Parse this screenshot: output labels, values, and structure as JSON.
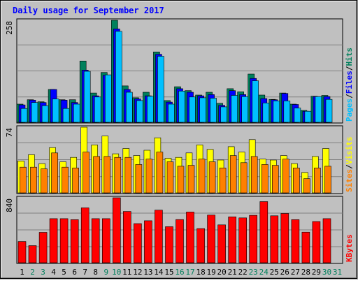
{
  "chart_data": {
    "type": "bar",
    "title": "Daily usage for September 2017",
    "categories": [
      "1",
      "2",
      "3",
      "4",
      "5",
      "6",
      "7",
      "8",
      "9",
      "10",
      "11",
      "12",
      "13",
      "14",
      "15",
      "16",
      "17",
      "18",
      "19",
      "20",
      "21",
      "22",
      "23",
      "24",
      "25",
      "26",
      "27",
      "28",
      "29",
      "30",
      "31"
    ],
    "weekend_days": [
      2,
      3,
      9,
      10,
      16,
      17,
      23,
      24,
      30,
      31
    ],
    "colors": {
      "background": "#c0c0c0",
      "hits": "#00805c",
      "files": "#0000ff",
      "pages": "#00c0ff",
      "visits": "#ffff00",
      "sites": "#ff8000",
      "kbytes": "#ff0000",
      "title": "#0000ff",
      "weekday_label": "#000000",
      "weekend_label": "#00805c"
    },
    "panels": [
      {
        "id": "hits-files-pages",
        "max_label": "258",
        "ylim": [
          0,
          258
        ],
        "legend": [
          "Pages",
          "Files",
          "Hits"
        ],
        "series": [
          {
            "name": "Hits",
            "color": "#00805c",
            "values": [
              46,
              57,
              52,
              83,
              57,
              57,
              155,
              74,
              126,
              258,
              92,
              62,
              76,
              178,
              55,
              90,
              80,
              69,
              76,
              48,
              85,
              77,
              122,
              69,
              58,
              74,
              46,
              30,
              66,
              68,
              0
            ]
          },
          {
            "name": "Files",
            "color": "#0000ff",
            "values": [
              44,
              56,
              50,
              83,
              56,
              50,
              132,
              67,
              119,
              236,
              83,
              59,
              67,
              172,
              51,
              85,
              76,
              67,
              70,
              43,
              80,
              70,
              111,
              60,
              57,
              73,
              45,
              28,
              65,
              65,
              0
            ]
          },
          {
            "name": "Pages",
            "color": "#00c0ff",
            "values": [
              35,
              50,
              42,
              59,
              35,
              46,
              129,
              64,
              120,
              230,
              76,
              55,
              66,
              167,
              46,
              79,
              64,
              62,
              61,
              39,
              68,
              65,
              105,
              49,
              54,
              54,
              36,
              28,
              65,
              58,
              0
            ]
          }
        ]
      },
      {
        "id": "visits-sites",
        "max_label": "74",
        "ylim": [
          0,
          74
        ],
        "legend": [
          "Sites",
          "Visits"
        ],
        "series": [
          {
            "name": "Visits",
            "color": "#ffff00",
            "values": [
              36,
              43,
              33,
              51,
              35,
              40,
              74,
              54,
              64,
              44,
              50,
              42,
              48,
              62,
              39,
              40,
              45,
              54,
              49,
              37,
              52,
              46,
              60,
              38,
              37,
              42,
              33,
              23,
              41,
              50,
              0
            ]
          },
          {
            "name": "Sites",
            "color": "#ff8000",
            "values": [
              29,
              29,
              27,
              45,
              29,
              28,
              46,
              41,
              41,
              40,
              40,
              32,
              38,
              46,
              35,
              30,
              31,
              38,
              35,
              28,
              42,
              34,
              41,
              32,
              31,
              38,
              28,
              16,
              28,
              30,
              0
            ]
          }
        ]
      },
      {
        "id": "kbytes",
        "max_label": "840",
        "ylim": [
          0,
          840
        ],
        "legend": [
          "KBytes"
        ],
        "series": [
          {
            "name": "KBytes",
            "color": "#ff0000",
            "values": [
              275,
              221,
              393,
              570,
              570,
              557,
              710,
              570,
              570,
              840,
              663,
              506,
              543,
              680,
              466,
              558,
              656,
              442,
              616,
              490,
              593,
              580,
              613,
              790,
              607,
              637,
              557,
              396,
              533,
              570,
              0
            ]
          }
        ]
      }
    ]
  }
}
